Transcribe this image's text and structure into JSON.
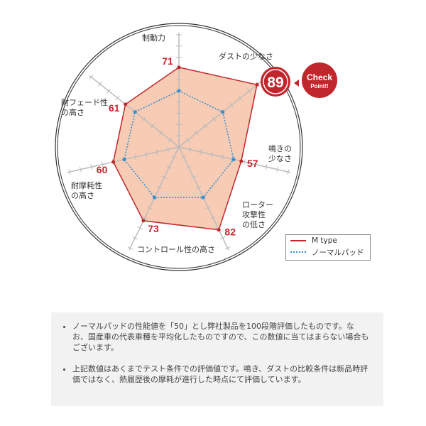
{
  "chart_data": {
    "type": "radar",
    "axes": [
      "制動力",
      "ダストの少なさ",
      "鳴きの少なさ",
      "ローター攻撃性の低さ",
      "コントロール性の高さ",
      "耐摩耗性の高さ",
      "耐フェード性の高さ"
    ],
    "range": [
      0,
      100
    ],
    "series": [
      {
        "name": "M type",
        "values": [
          71,
          89,
          57,
          82,
          73,
          60,
          61
        ],
        "color": "#c0272d",
        "fill": "#f7cbb4"
      },
      {
        "name": "ノーマルパッド",
        "values": [
          50,
          50,
          50,
          50,
          50,
          50,
          50
        ],
        "color": "#2f8fd0"
      }
    ],
    "value_labels": [
      "71",
      "89",
      "57",
      "82",
      "73",
      "60",
      "61"
    ],
    "callout": {
      "value": "89",
      "text1": "Check",
      "text2": "Point!!",
      "color": "#c0272d"
    }
  },
  "axis_labels": {
    "a0": "制動力",
    "a1": "ダストの少なさ",
    "a2_1": "鳴きの",
    "a2_2": "少なさ",
    "a3_1": "ローター",
    "a3_2": "攻撃性",
    "a3_3": "の低さ",
    "a4": "コントロール性の高さ",
    "a5_1": "耐摩耗性",
    "a5_2": "の高さ",
    "a6_1": "耐フェード性",
    "a6_2": "の高さ"
  },
  "legend": {
    "m": "M type",
    "normal": "ノーマルパッド"
  },
  "notes": [
    "ノーマルパッドの性能値を「50」とし弊社製品を100段階評価したものです。なお、国産車の代表車種を平均化したものですので、この数値に当てはまらない場合もございます。",
    "上記数値はあくまでテスト条件での評価値です。鳴き、ダストの比較条件は新品時評価ではなく、熱履歴後の摩耗が進行した時点にて評価しています。"
  ]
}
